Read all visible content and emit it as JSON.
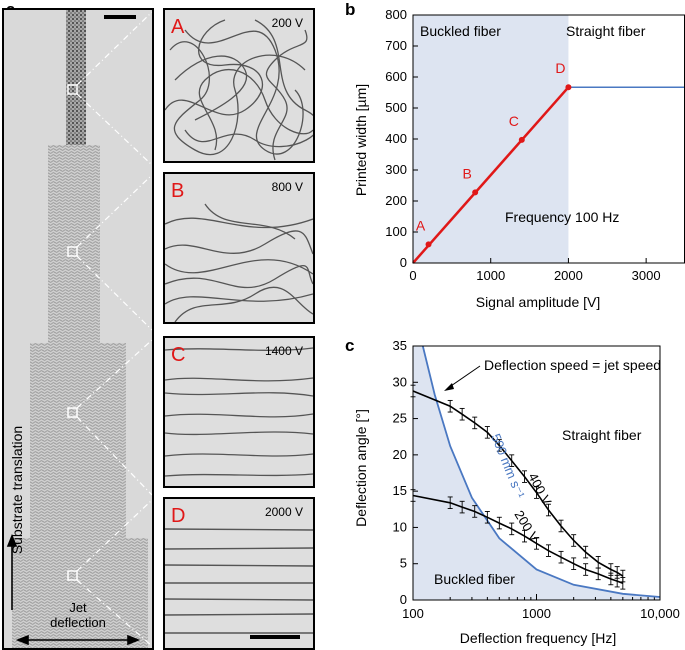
{
  "panel_letters": {
    "a": "a",
    "b": "b",
    "c": "c"
  },
  "panel_a": {
    "ylabel": "Substrate translation",
    "xlabel_line1": "Jet",
    "xlabel_line2": "deflection"
  },
  "insets": [
    {
      "letter": "A",
      "voltage": "200 V"
    },
    {
      "letter": "B",
      "voltage": "800 V"
    },
    {
      "letter": "C",
      "voltage": "1400 V"
    },
    {
      "letter": "D",
      "voltage": "2000 V"
    }
  ],
  "chart_b": {
    "region_left": "Buckled fiber",
    "region_right": "Straight fiber",
    "annotation": "Frequency 100 Hz",
    "xlabel": "Signal amplitude [V]",
    "ylabel": "Printed width [µm]",
    "xticks": [
      "0",
      "1000",
      "2000",
      "3000"
    ],
    "yticks": [
      "0",
      "100",
      "200",
      "300",
      "400",
      "500",
      "600",
      "700",
      "800"
    ]
  },
  "chart_c": {
    "region_bottom": "Buckled fiber",
    "region_top": "Straight fiber",
    "curve_label": "500 mm s⁻¹",
    "arrow_annotation": "Deflection speed = jet speed",
    "series_labels": [
      "400 V",
      "200 V"
    ],
    "xlabel": "Deflection frequency [Hz]",
    "ylabel": "Deflection angle [°]",
    "xticks": [
      "100",
      "1000",
      "10,000"
    ],
    "yticks": [
      "0",
      "5",
      "10",
      "15",
      "20",
      "25",
      "30",
      "35"
    ]
  },
  "chart_data": [
    {
      "type": "line",
      "title": "",
      "xlabel": "Signal amplitude [V]",
      "ylabel": "Printed width [µm]",
      "xlim": [
        0,
        3500
      ],
      "ylim": [
        0,
        800
      ],
      "grid": false,
      "shaded_region_x": [
        0,
        2000
      ],
      "points": [
        {
          "label": "A",
          "x": 200,
          "y": 60
        },
        {
          "label": "B",
          "x": 800,
          "y": 228
        },
        {
          "label": "C",
          "x": 1400,
          "y": 397
        },
        {
          "label": "D",
          "x": 2000,
          "y": 567
        }
      ],
      "fit_line": {
        "x": [
          0,
          2000
        ],
        "y": [
          0,
          567
        ]
      },
      "plateau": {
        "x": [
          2000,
          3500
        ],
        "y": [
          567,
          567
        ]
      },
      "colors": {
        "points": "#e01818",
        "plateau": "#4a78c2",
        "shade": "#dde4f1"
      }
    },
    {
      "type": "line",
      "title": "",
      "xlabel": "Deflection frequency [Hz]",
      "ylabel": "Deflection angle [°]",
      "xscale": "log",
      "xlim": [
        100,
        10000
      ],
      "ylim": [
        0,
        35
      ],
      "grid": false,
      "series": [
        {
          "name": "400 V",
          "x": [
            100,
            200,
            250,
            316,
            400,
            500,
            630,
            800,
            1000,
            1250,
            1580,
            2000,
            2500,
            3160,
            4000,
            4500,
            5000
          ],
          "y": [
            28.8,
            26.7,
            25.6,
            24.4,
            23.1,
            21.3,
            19.2,
            17.0,
            14.8,
            12.4,
            10.2,
            8.2,
            6.6,
            5.2,
            4.2,
            3.8,
            3.3
          ],
          "err": [
            0.8,
            0.8,
            0.8,
            0.8,
            0.8,
            0.8,
            0.8,
            0.8,
            0.8,
            0.8,
            0.8,
            0.8,
            0.8,
            0.8,
            0.8,
            0.8,
            0.8
          ]
        },
        {
          "name": "200 V",
          "x": [
            100,
            200,
            250,
            316,
            400,
            500,
            630,
            800,
            1000,
            1250,
            1580,
            2000,
            2500,
            3160,
            4000,
            4500,
            5000
          ],
          "y": [
            14.4,
            13.4,
            12.8,
            12.2,
            11.4,
            10.6,
            9.8,
            8.8,
            7.8,
            6.8,
            5.9,
            5.0,
            4.2,
            3.6,
            2.9,
            2.6,
            2.3
          ],
          "err": [
            0.8,
            0.8,
            0.8,
            0.8,
            0.8,
            0.8,
            0.8,
            0.8,
            0.8,
            0.8,
            0.8,
            0.8,
            0.8,
            0.8,
            0.8,
            0.8,
            0.8
          ]
        },
        {
          "name": "500 mm s⁻¹",
          "x": [
            120,
            150,
            200,
            300,
            500,
            1000,
            2000,
            5000,
            10000
          ],
          "y": [
            35,
            28.3,
            21.2,
            14.1,
            8.5,
            4.2,
            2.1,
            0.85,
            0.42
          ]
        }
      ],
      "colors": {
        "data": "#000000",
        "curve": "#4a78c2",
        "shade": "#dde4f1"
      }
    }
  ]
}
